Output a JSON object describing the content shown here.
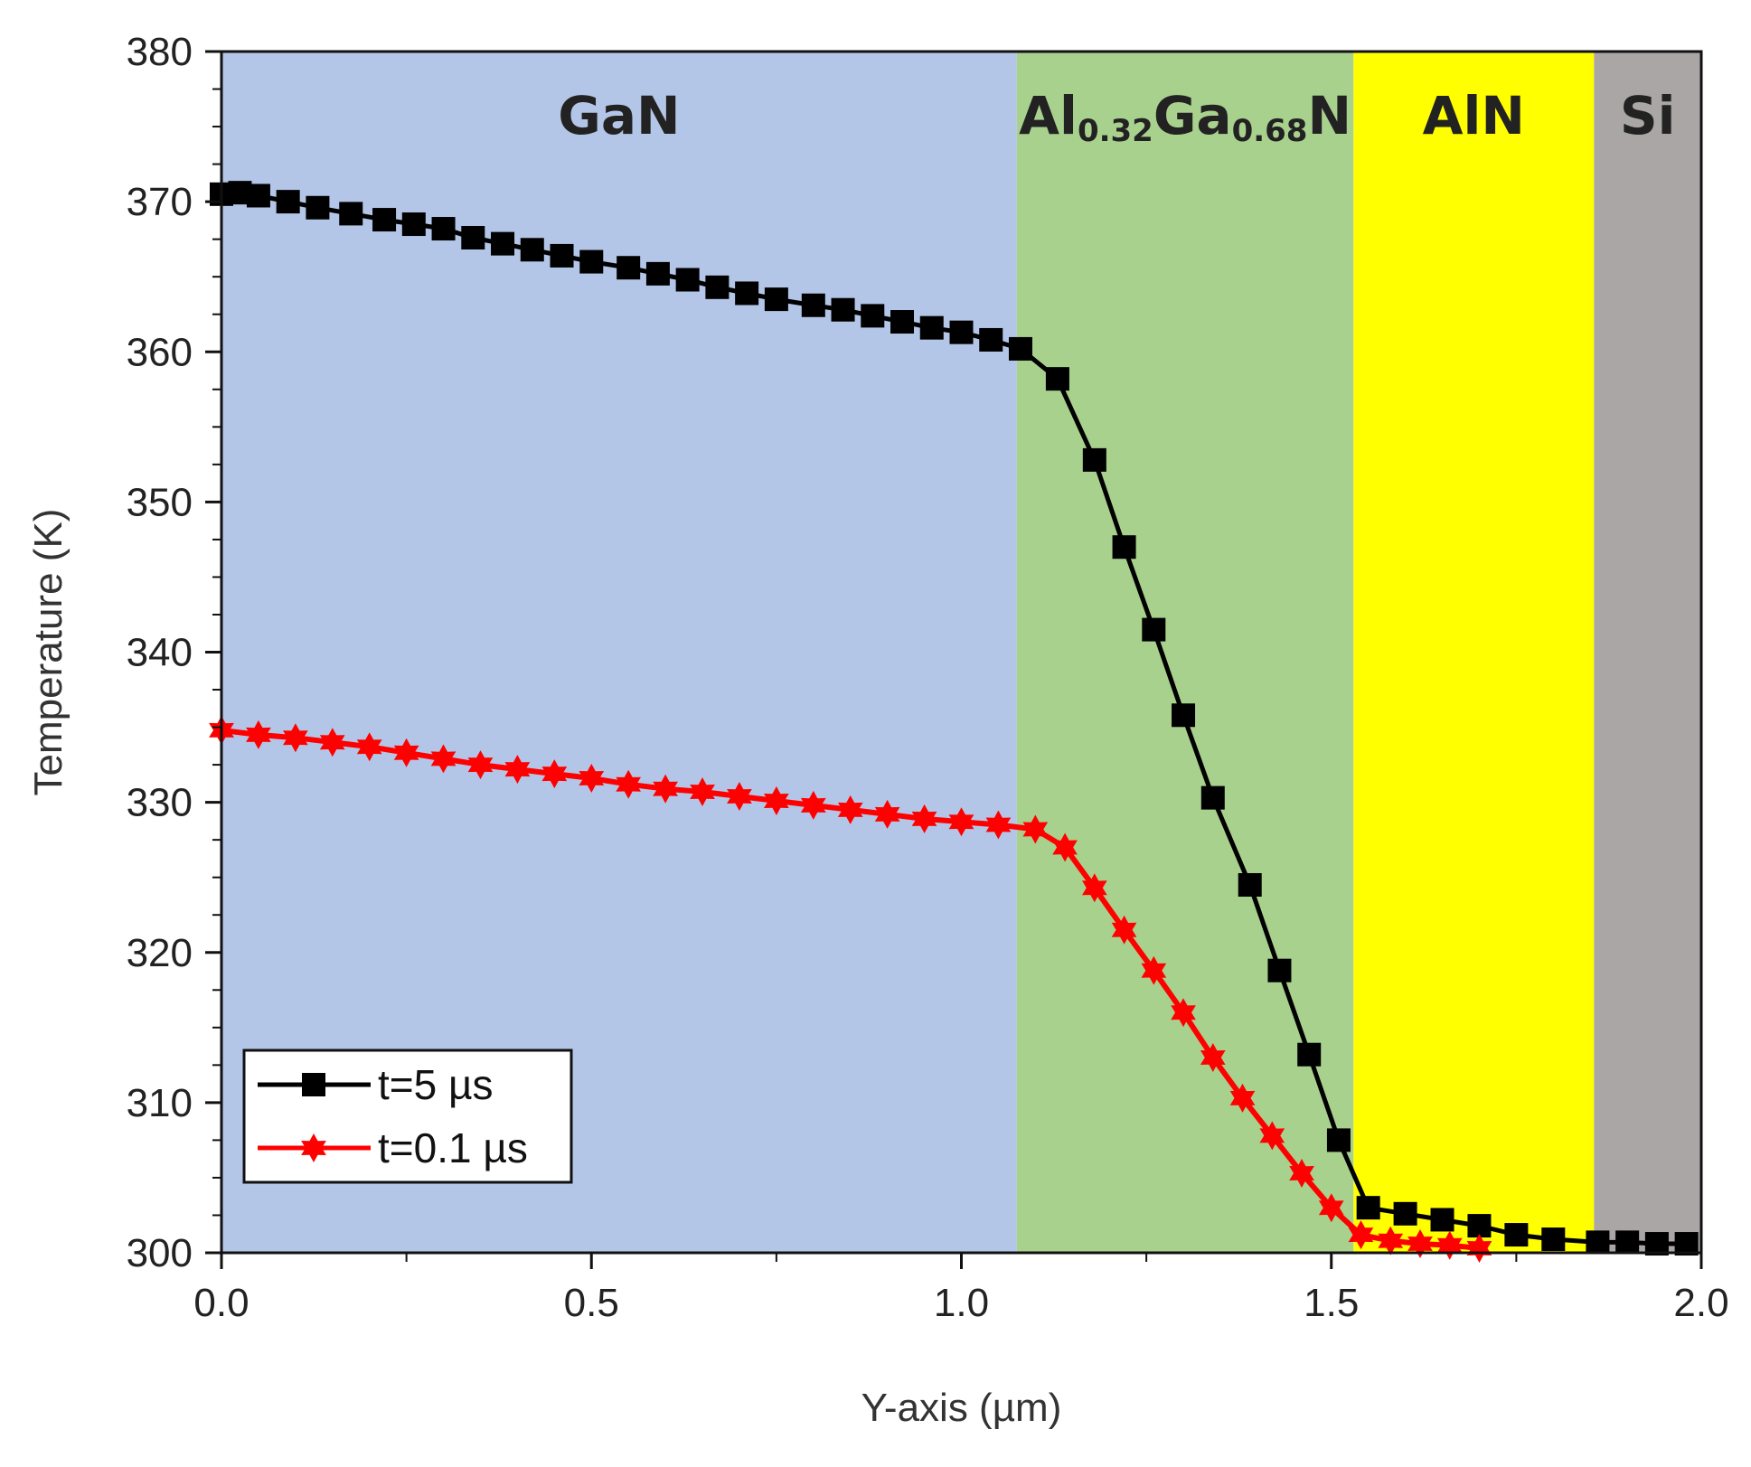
{
  "chart_data": {
    "type": "line",
    "title": "",
    "xlabel": "Y-axis (µm)",
    "ylabel": "Temperature (K)",
    "xlim": [
      0,
      2.0
    ],
    "ylim": [
      300,
      380
    ],
    "x_ticks": [
      "0.0",
      "0.5",
      "1.0",
      "1.5",
      "2.0"
    ],
    "y_ticks": [
      "300",
      "310",
      "320",
      "330",
      "340",
      "350",
      "360",
      "370",
      "380"
    ],
    "grid": false,
    "legend_position": "bottom-left",
    "regions": [
      {
        "name": "GaN",
        "x_start": 0.0,
        "x_end": 1.075,
        "color": "#b4c6e7"
      },
      {
        "name": "Al0.32Ga0.68N",
        "name_parts": [
          "Al",
          "0.32",
          "Ga",
          "0.68",
          "N"
        ],
        "x_start": 1.075,
        "x_end": 1.53,
        "color": "#a9d18e"
      },
      {
        "name": "AlN",
        "x_start": 1.53,
        "x_end": 1.855,
        "color": "#ffff00"
      },
      {
        "name": "Si",
        "x_start": 1.855,
        "x_end": 2.0,
        "color": "#aaa6a6"
      }
    ],
    "series": [
      {
        "name": "t=5 µs",
        "color": "#000000",
        "marker": "square",
        "x": [
          0.0,
          0.025,
          0.05,
          0.09,
          0.13,
          0.175,
          0.22,
          0.26,
          0.3,
          0.34,
          0.38,
          0.42,
          0.46,
          0.5,
          0.55,
          0.59,
          0.63,
          0.67,
          0.71,
          0.75,
          0.8,
          0.84,
          0.88,
          0.92,
          0.96,
          1.0,
          1.04,
          1.08,
          1.13,
          1.18,
          1.22,
          1.26,
          1.3,
          1.34,
          1.39,
          1.43,
          1.47,
          1.51,
          1.55,
          1.6,
          1.65,
          1.7,
          1.75,
          1.8,
          1.86,
          1.9,
          1.94,
          1.98
        ],
        "values": [
          370.5,
          370.6,
          370.4,
          370.0,
          369.6,
          369.2,
          368.8,
          368.5,
          368.2,
          367.6,
          367.2,
          366.8,
          366.4,
          366.0,
          365.6,
          365.2,
          364.8,
          364.3,
          363.9,
          363.5,
          363.1,
          362.8,
          362.4,
          362.0,
          361.6,
          361.3,
          360.8,
          360.2,
          358.2,
          352.8,
          347.0,
          341.5,
          335.8,
          330.3,
          324.5,
          318.8,
          313.2,
          307.5,
          303.0,
          302.6,
          302.2,
          301.8,
          301.2,
          300.9,
          300.7,
          300.7,
          300.6,
          300.6
        ]
      },
      {
        "name": "t=0.1 µs",
        "color": "#ff0000",
        "marker": "star",
        "x": [
          0.0,
          0.05,
          0.1,
          0.15,
          0.2,
          0.25,
          0.3,
          0.35,
          0.4,
          0.45,
          0.5,
          0.55,
          0.6,
          0.65,
          0.7,
          0.75,
          0.8,
          0.85,
          0.9,
          0.95,
          1.0,
          1.05,
          1.1,
          1.14,
          1.18,
          1.22,
          1.26,
          1.3,
          1.34,
          1.38,
          1.42,
          1.46,
          1.5,
          1.54,
          1.58,
          1.62,
          1.66,
          1.7
        ],
        "values": [
          334.8,
          334.5,
          334.3,
          334.0,
          333.7,
          333.3,
          332.9,
          332.5,
          332.2,
          331.9,
          331.6,
          331.2,
          330.9,
          330.7,
          330.4,
          330.1,
          329.8,
          329.5,
          329.2,
          328.9,
          328.7,
          328.5,
          328.2,
          327.0,
          324.3,
          321.5,
          318.8,
          316.0,
          313.0,
          310.3,
          307.8,
          305.3,
          303.0,
          301.2,
          300.8,
          300.6,
          300.5,
          300.3
        ]
      }
    ]
  }
}
